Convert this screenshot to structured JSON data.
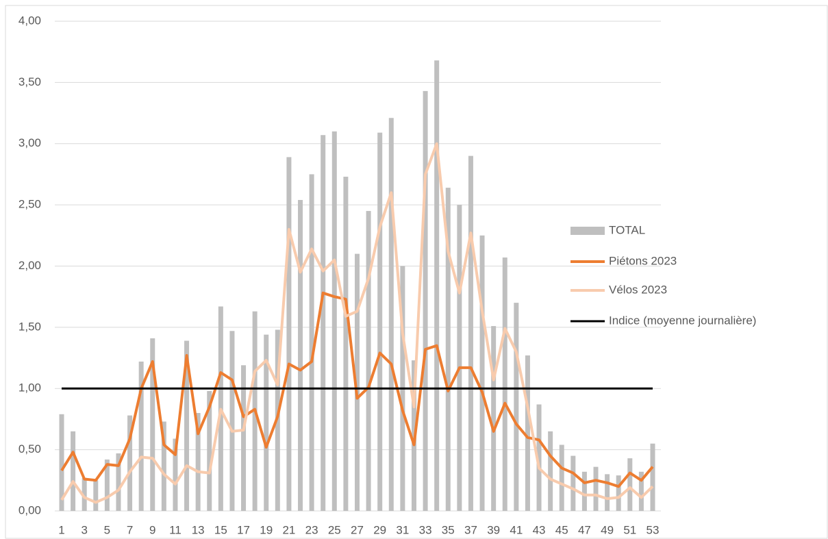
{
  "chart_data": {
    "type": "combo",
    "categories": [
      1,
      null,
      3,
      null,
      5,
      null,
      7,
      null,
      9,
      null,
      11,
      null,
      13,
      null,
      15,
      null,
      17,
      null,
      19,
      null,
      21,
      null,
      23,
      null,
      25,
      null,
      27,
      null,
      29,
      null,
      31,
      null,
      33,
      null,
      35,
      null,
      37,
      null,
      39,
      null,
      41,
      null,
      43,
      null,
      45,
      null,
      47,
      null,
      49,
      null,
      51,
      null,
      53
    ],
    "series": [
      {
        "name": "TOTAL",
        "type": "bar",
        "color": "#bfbfbf",
        "values": [
          0.79,
          0.65,
          0.27,
          0.25,
          0.42,
          0.47,
          0.78,
          1.22,
          1.41,
          0.73,
          0.59,
          1.39,
          0.8,
          0.98,
          1.67,
          1.47,
          1.19,
          1.63,
          1.44,
          1.48,
          2.89,
          2.54,
          2.75,
          3.07,
          3.1,
          2.73,
          2.1,
          2.45,
          3.09,
          3.21,
          2.0,
          1.23,
          3.43,
          3.68,
          2.64,
          2.5,
          2.9,
          2.25,
          1.51,
          2.07,
          1.7,
          1.27,
          0.87,
          0.65,
          0.54,
          0.45,
          0.32,
          0.36,
          0.3,
          0.29,
          0.43,
          0.32,
          0.55
        ]
      },
      {
        "name": "Piétons 2023",
        "type": "line",
        "color": "#ed7d31",
        "values": [
          0.33,
          0.48,
          0.26,
          0.25,
          0.38,
          0.37,
          0.59,
          1.0,
          1.22,
          0.54,
          0.46,
          1.27,
          0.63,
          0.85,
          1.13,
          1.07,
          0.77,
          0.83,
          0.52,
          0.77,
          1.2,
          1.15,
          1.22,
          1.78,
          1.75,
          1.73,
          0.92,
          1.01,
          1.29,
          1.2,
          0.82,
          0.54,
          1.32,
          1.35,
          0.98,
          1.17,
          1.17,
          0.97,
          0.65,
          0.88,
          0.71,
          0.6,
          0.58,
          0.45,
          0.35,
          0.31,
          0.23,
          0.25,
          0.23,
          0.2,
          0.31,
          0.25,
          0.36
        ]
      },
      {
        "name": "Vélos 2023",
        "type": "line",
        "color": "#f8cbad",
        "values": [
          0.09,
          0.24,
          0.11,
          0.07,
          0.11,
          0.17,
          0.32,
          0.44,
          0.43,
          0.3,
          0.22,
          0.37,
          0.32,
          0.31,
          0.83,
          0.65,
          0.66,
          1.14,
          1.23,
          1.03,
          2.3,
          1.95,
          2.14,
          1.96,
          2.05,
          1.59,
          1.63,
          1.9,
          2.32,
          2.6,
          1.45,
          0.85,
          2.75,
          3.0,
          2.12,
          1.78,
          2.27,
          1.63,
          1.07,
          1.49,
          1.3,
          0.85,
          0.35,
          0.26,
          0.22,
          0.18,
          0.13,
          0.13,
          0.1,
          0.11,
          0.19,
          0.11,
          0.2
        ]
      },
      {
        "name": "Indice (moyenne journalière)",
        "type": "line",
        "color": "#000000",
        "values": [
          1,
          1,
          1,
          1,
          1,
          1,
          1,
          1,
          1,
          1,
          1,
          1,
          1,
          1,
          1,
          1,
          1,
          1,
          1,
          1,
          1,
          1,
          1,
          1,
          1,
          1,
          1,
          1,
          1,
          1,
          1,
          1,
          1,
          1,
          1,
          1,
          1,
          1,
          1,
          1,
          1,
          1,
          1,
          1,
          1,
          1,
          1,
          1,
          1,
          1,
          1,
          1,
          1
        ]
      }
    ],
    "ylim": [
      0,
      4
    ],
    "yticks": [
      {
        "value": 0,
        "label": "0,00"
      },
      {
        "value": 0.5,
        "label": "0,50"
      },
      {
        "value": 1,
        "label": "1,00"
      },
      {
        "value": 1.5,
        "label": "1,50"
      },
      {
        "value": 2,
        "label": "2,00"
      },
      {
        "value": 2.5,
        "label": "2,50"
      },
      {
        "value": 3,
        "label": "3,00"
      },
      {
        "value": 3.5,
        "label": "3,50"
      },
      {
        "value": 4,
        "label": "4,00"
      }
    ],
    "grid": true,
    "legend": "right"
  }
}
